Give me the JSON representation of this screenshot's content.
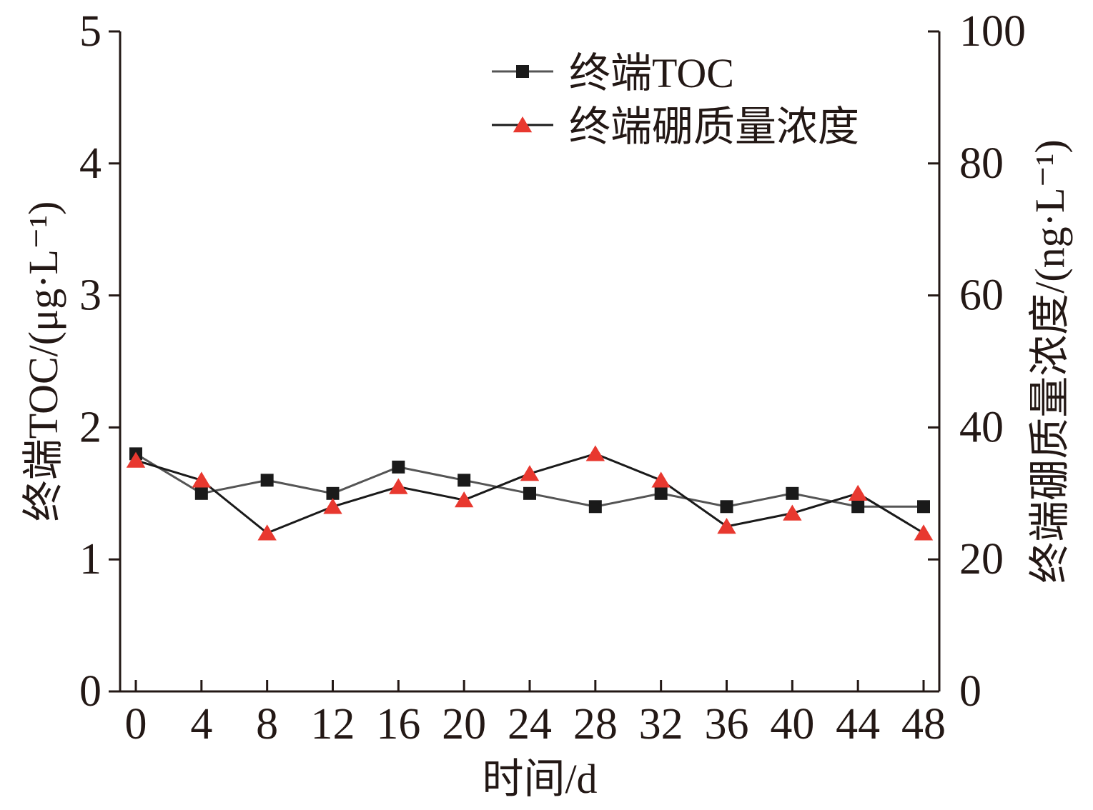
{
  "chart_data": {
    "type": "line",
    "x": [
      0,
      4,
      8,
      12,
      16,
      20,
      24,
      28,
      32,
      36,
      40,
      44,
      48
    ],
    "x_ticks": [
      "0",
      "4",
      "8",
      "12",
      "16",
      "20",
      "24",
      "28",
      "32",
      "36",
      "40",
      "44",
      "48"
    ],
    "xlabel": "时间/d",
    "ylabel_left": "终端TOC/(μg·L⁻¹)",
    "ylabel_right": "终端硼质量浓度/(ng·L⁻¹)",
    "ylim_left": [
      0,
      5
    ],
    "ylim_right": [
      0,
      100
    ],
    "y_ticks_left": [
      "0",
      "1",
      "2",
      "3",
      "4",
      "5"
    ],
    "y_ticks_right": [
      "0",
      "20",
      "40",
      "60",
      "80",
      "100"
    ],
    "grid": false,
    "legend_position": "top-right",
    "series": [
      {
        "name": "终端TOC",
        "axis": "left",
        "marker": "square",
        "color": "#1a1a1a",
        "line_color": "#555555",
        "values": [
          1.8,
          1.5,
          1.6,
          1.5,
          1.7,
          1.6,
          1.5,
          1.4,
          1.5,
          1.4,
          1.5,
          1.4,
          1.4
        ]
      },
      {
        "name": "终端硼质量浓度",
        "axis": "right",
        "marker": "triangle",
        "color": "#e8382f",
        "line_color": "#1a1a1a",
        "values": [
          35,
          32,
          24,
          28,
          31,
          29,
          33,
          36,
          32,
          25,
          27,
          30,
          24
        ]
      }
    ]
  }
}
